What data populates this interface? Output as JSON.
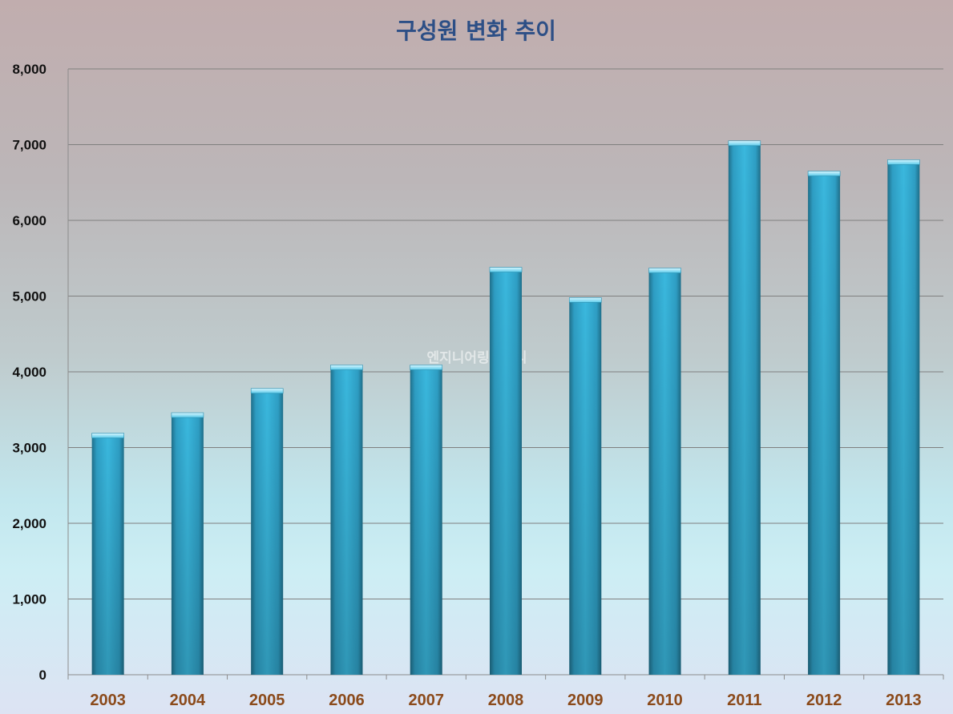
{
  "chart_data": {
    "type": "bar",
    "title": "구성원 변화 추이",
    "xlabel": "",
    "ylabel": "",
    "categories": [
      "2003",
      "2004",
      "2005",
      "2006",
      "2007",
      "2008",
      "2009",
      "2010",
      "2011",
      "2012",
      "2013"
    ],
    "values": [
      3190,
      3460,
      3780,
      4090,
      4090,
      5380,
      4980,
      5370,
      7050,
      6650,
      6800
    ],
    "ylim": [
      0,
      8000
    ],
    "yticks": [
      0,
      1000,
      2000,
      3000,
      4000,
      5000,
      6000,
      7000,
      8000
    ],
    "ytick_labels": [
      "0",
      "1,000",
      "2,000",
      "3,000",
      "4,000",
      "5,000",
      "6,000",
      "7,000",
      "8,000"
    ],
    "grid": true,
    "legend": "none",
    "bar_color": "#35b5d9",
    "title_color": "#2d4f86",
    "xtick_color": "#8b4a1a",
    "watermark": "엔지니어링데일리"
  }
}
